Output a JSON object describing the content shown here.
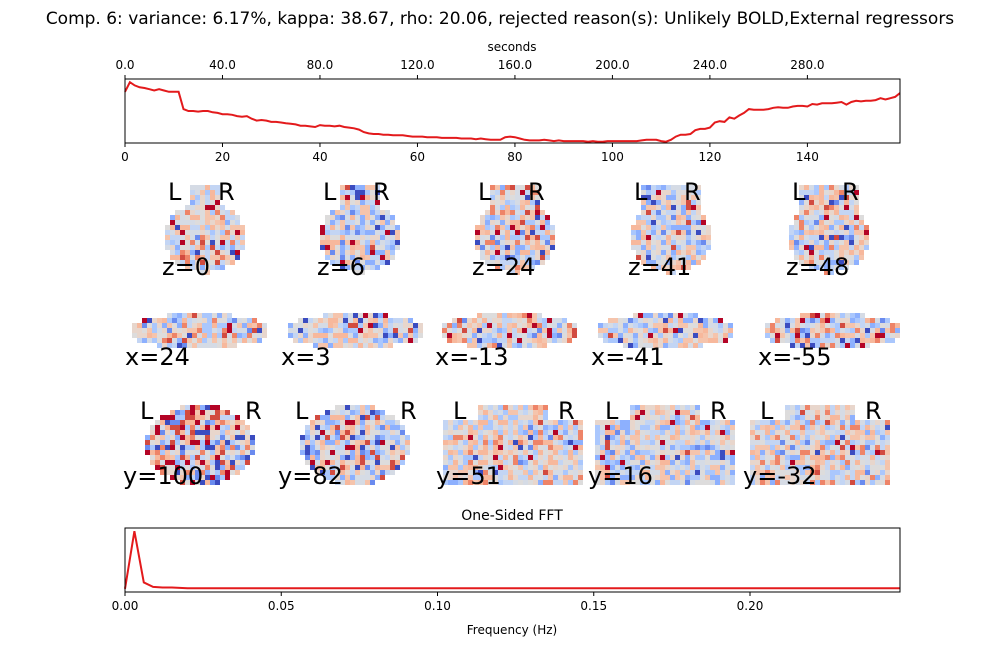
{
  "title": "Comp. 6: variance: 6.17%, kappa: 38.67, rho: 20.06, rejected reason(s): Unlikely BOLD,External regressors",
  "colors": {
    "line": "#e31a1c",
    "axes": "#000000",
    "cold": "#3b4cc0",
    "warm": "#b40426",
    "neutral": "#dddcdc"
  },
  "chart_data": [
    {
      "type": "line",
      "name": "timeseries",
      "xlabel_top": "seconds",
      "x_top_ticks": [
        "0.0",
        "40.0",
        "80.0",
        "120.0",
        "160.0",
        "200.0",
        "240.0",
        "280.0"
      ],
      "x_top_values": [
        0,
        40,
        80,
        120,
        160,
        200,
        240,
        280
      ],
      "x_bottom_ticks": [
        "0",
        "20",
        "40",
        "60",
        "80",
        "100",
        "120",
        "140"
      ],
      "x_bottom_values": [
        0,
        20,
        40,
        60,
        80,
        100,
        120,
        140
      ],
      "xlim": [
        0,
        159
      ],
      "ylim": [
        0,
        1
      ],
      "x": [
        0,
        1,
        2,
        3,
        4,
        5,
        6,
        7,
        8,
        9,
        10,
        11,
        12,
        13,
        14,
        15,
        16,
        17,
        18,
        19,
        20,
        21,
        22,
        23,
        24,
        25,
        26,
        27,
        28,
        29,
        30,
        31,
        32,
        33,
        34,
        35,
        36,
        37,
        38,
        39,
        40,
        41,
        42,
        43,
        44,
        45,
        46,
        47,
        48,
        49,
        50,
        51,
        52,
        53,
        54,
        55,
        56,
        57,
        58,
        59,
        60,
        61,
        62,
        63,
        64,
        65,
        66,
        67,
        68,
        69,
        70,
        71,
        72,
        73,
        74,
        75,
        76,
        77,
        78,
        79,
        80,
        81,
        82,
        83,
        84,
        85,
        86,
        87,
        88,
        89,
        90,
        91,
        92,
        93,
        94,
        95,
        96,
        97,
        98,
        99,
        100,
        101,
        102,
        103,
        104,
        105,
        106,
        107,
        108,
        109,
        110,
        111,
        112,
        113,
        114,
        115,
        116,
        117,
        118,
        119,
        120,
        121,
        122,
        123,
        124,
        125,
        126,
        127,
        128,
        129,
        130,
        131,
        132,
        133,
        134,
        135,
        136,
        137,
        138,
        139,
        140,
        141,
        142,
        143,
        144,
        145,
        146,
        147,
        148,
        149,
        150,
        151,
        152,
        153,
        154,
        155,
        156,
        157,
        158,
        159
      ],
      "values": [
        0.8,
        0.95,
        0.9,
        0.87,
        0.86,
        0.84,
        0.82,
        0.84,
        0.82,
        0.8,
        0.8,
        0.8,
        0.53,
        0.5,
        0.5,
        0.49,
        0.5,
        0.5,
        0.48,
        0.47,
        0.45,
        0.45,
        0.44,
        0.42,
        0.41,
        0.42,
        0.38,
        0.35,
        0.36,
        0.35,
        0.33,
        0.33,
        0.32,
        0.31,
        0.3,
        0.29,
        0.27,
        0.27,
        0.26,
        0.25,
        0.28,
        0.27,
        0.27,
        0.26,
        0.27,
        0.25,
        0.24,
        0.23,
        0.21,
        0.17,
        0.15,
        0.14,
        0.14,
        0.13,
        0.13,
        0.12,
        0.12,
        0.12,
        0.11,
        0.1,
        0.1,
        0.1,
        0.09,
        0.09,
        0.09,
        0.08,
        0.08,
        0.08,
        0.08,
        0.07,
        0.07,
        0.07,
        0.06,
        0.07,
        0.06,
        0.05,
        0.05,
        0.05,
        0.09,
        0.1,
        0.09,
        0.07,
        0.05,
        0.04,
        0.04,
        0.04,
        0.05,
        0.04,
        0.03,
        0.04,
        0.03,
        0.03,
        0.03,
        0.03,
        0.03,
        0.02,
        0.03,
        0.02,
        0.02,
        0.03,
        0.03,
        0.03,
        0.03,
        0.03,
        0.03,
        0.03,
        0.04,
        0.05,
        0.05,
        0.05,
        0.03,
        0.02,
        0.05,
        0.1,
        0.13,
        0.13,
        0.14,
        0.2,
        0.22,
        0.22,
        0.24,
        0.32,
        0.34,
        0.33,
        0.4,
        0.38,
        0.43,
        0.47,
        0.53,
        0.52,
        0.52,
        0.52,
        0.53,
        0.55,
        0.56,
        0.55,
        0.55,
        0.57,
        0.58,
        0.58,
        0.57,
        0.61,
        0.6,
        0.62,
        0.62,
        0.62,
        0.63,
        0.64,
        0.6,
        0.64,
        0.66,
        0.65,
        0.66,
        0.66,
        0.67,
        0.7,
        0.68,
        0.7,
        0.72,
        0.78
      ]
    },
    {
      "type": "line",
      "name": "fft",
      "title": "One-Sided FFT",
      "xlabel": "Frequency (Hz)",
      "x_ticks": [
        "0.00",
        "0.05",
        "0.10",
        "0.15",
        "0.20"
      ],
      "x_tick_values": [
        0,
        0.05,
        0.1,
        0.15,
        0.2
      ],
      "xlim": [
        0,
        0.248
      ],
      "ylim": [
        0,
        1
      ],
      "x": [
        0,
        0.003,
        0.006,
        0.009,
        0.012,
        0.015,
        0.02,
        0.03,
        0.05,
        0.1,
        0.15,
        0.2,
        0.248
      ],
      "values": [
        0.05,
        0.95,
        0.15,
        0.08,
        0.07,
        0.07,
        0.06,
        0.06,
        0.06,
        0.06,
        0.06,
        0.06,
        0.06
      ]
    }
  ],
  "brain_slices": {
    "rows": [
      {
        "orientation": "axial",
        "labels": [
          "z=0",
          "z=6",
          "z=24",
          "z=41",
          "z=48"
        ],
        "lr": [
          "L",
          "R"
        ]
      },
      {
        "orientation": "sagittal",
        "labels": [
          "x=24",
          "x=3",
          "x=-13",
          "x=-41",
          "x=-55"
        ]
      },
      {
        "orientation": "coronal",
        "labels": [
          "y=100",
          "y=82",
          "y=51",
          "y=16",
          "y=-32"
        ],
        "lr": [
          "L",
          "R"
        ]
      }
    ]
  }
}
